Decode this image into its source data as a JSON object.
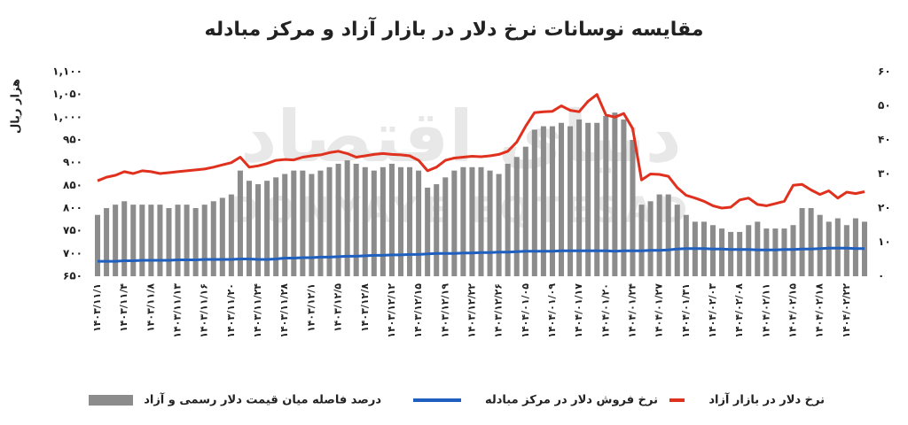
{
  "chart_data": {
    "type": "combo",
    "title": "مقایسه نوسانات نرخ دلار در بازار آزاد و مرکز مبادله",
    "y_label": "هزار ریال",
    "watermark": "دنیای اقتصاد",
    "watermark_latin": "DONYAYE EQTESAD",
    "categories": [
      "۱۴۰۳/۱۱/۱",
      null,
      null,
      "۱۴۰۳/۱۱/۴",
      null,
      null,
      "۱۴۰۳/۱۱/۸",
      null,
      null,
      "۱۴۰۳/۱۱/۱۳",
      null,
      null,
      "۱۴۰۳/۱۱/۱۶",
      null,
      null,
      "۱۴۰۳/۱۱/۲۰",
      null,
      null,
      "۱۴۰۳/۱۱/۲۴",
      null,
      null,
      "۱۴۰۳/۱۱/۲۸",
      null,
      null,
      "۱۴۰۳/۱۲/۱",
      null,
      null,
      "۱۴۰۳/۱۲/۵",
      null,
      null,
      "۱۴۰۳/۱۲/۸",
      null,
      null,
      "۱۴۰۳/۱۲/۱۲",
      null,
      null,
      "۱۴۰۳/۱۲/۱۵",
      null,
      null,
      "۱۴۰۳/۱۲/۱۹",
      null,
      null,
      "۱۴۰۳/۱۲/۲۲",
      null,
      null,
      "۱۴۰۳/۱۲/۲۶",
      null,
      null,
      "۱۴۰۴/۰۱/۰۵",
      null,
      null,
      "۱۴۰۴/۰۱/۰۹",
      null,
      null,
      "۱۴۰۴/۰۱/۱۷",
      null,
      null,
      "۱۴۰۴/۰۱/۲۰",
      null,
      null,
      "۱۴۰۴/۰۱/۲۴",
      null,
      null,
      "۱۴۰۴/۰۱/۲۷",
      null,
      null,
      "۱۴۰۴/۰۱/۳۱",
      null,
      null,
      "۱۴۰۴/۰۲/۰۳",
      null,
      null,
      "۱۴۰۴/۰۲/۰۸",
      null,
      null,
      "۱۴۰۴/۰۲/۱۱",
      null,
      null,
      "۱۴۰۴/۰۲/۱۵",
      null,
      null,
      "۱۴۰۴/۰۲/۱۸",
      null,
      null,
      "۱۴۰۴/۰۲/۲۲",
      null,
      null
    ],
    "series": [
      {
        "name": "درصد فاصله میان قیمت دلار رسمی و آزاد",
        "type": "bar",
        "axis": "y2",
        "color": "#8c8c8c",
        "values": [
          18,
          20,
          21,
          22,
          21,
          21,
          21,
          21,
          20,
          21,
          21,
          20,
          21,
          22,
          23,
          24,
          31,
          28,
          27,
          28,
          29,
          30,
          31,
          31,
          30,
          31,
          32,
          33,
          34,
          33,
          32,
          31,
          32,
          33,
          32,
          32,
          31,
          26,
          27,
          29,
          31,
          32,
          32,
          32,
          31,
          30,
          33,
          35,
          38,
          43,
          44,
          44,
          45,
          44,
          46,
          45,
          45,
          47,
          48,
          46,
          40,
          21,
          22,
          24,
          24,
          21,
          18,
          16,
          16,
          15,
          14,
          13,
          13,
          15,
          16,
          14,
          14,
          14,
          15,
          20,
          20,
          18,
          16,
          17,
          15,
          17,
          16
        ]
      },
      {
        "name": "نرخ فروش دلار در مرکز مبادله",
        "type": "line",
        "axis": "y",
        "color": "#1f5fbf",
        "values": [
          683,
          683,
          683,
          684,
          684,
          685,
          685,
          685,
          685,
          686,
          686,
          686,
          687,
          687,
          687,
          687,
          688,
          688,
          687,
          687,
          688,
          690,
          690,
          691,
          691,
          692,
          692,
          693,
          694,
          694,
          695,
          696,
          696,
          697,
          697,
          698,
          698,
          699,
          700,
          700,
          700,
          701,
          701,
          702,
          702,
          703,
          703,
          704,
          705,
          705,
          705,
          705,
          706,
          706,
          706,
          706,
          706,
          706,
          705,
          706,
          706,
          706,
          707,
          707,
          708,
          710,
          711,
          711,
          711,
          710,
          710,
          709,
          709,
          709,
          708,
          708,
          708,
          709,
          709,
          710,
          710,
          711,
          712,
          712,
          712,
          711,
          711
        ]
      },
      {
        "name": "نرخ دلار در بازار آزاد",
        "type": "line",
        "axis": "y",
        "color": "#e0301e",
        "values": [
          860,
          868,
          872,
          880,
          876,
          882,
          880,
          876,
          878,
          880,
          882,
          884,
          886,
          890,
          895,
          900,
          912,
          890,
          893,
          898,
          905,
          907,
          906,
          912,
          915,
          917,
          922,
          925,
          920,
          912,
          915,
          918,
          920,
          918,
          917,
          915,
          905,
          882,
          890,
          905,
          910,
          912,
          914,
          913,
          915,
          918,
          925,
          945,
          980,
          1010,
          1012,
          1013,
          1025,
          1015,
          1012,
          1035,
          1050,
          1005,
          1000,
          1008,
          975,
          862,
          875,
          874,
          870,
          845,
          828,
          822,
          815,
          805,
          800,
          802,
          818,
          822,
          808,
          805,
          810,
          815,
          850,
          852,
          840,
          830,
          838,
          822,
          835,
          832,
          836
        ]
      }
    ],
    "ylim": [
      650,
      1100
    ],
    "yticks": [
      {
        "value": 650,
        "label": "۶۵۰"
      },
      {
        "value": 700,
        "label": "۷۰۰"
      },
      {
        "value": 750,
        "label": "۷۵۰"
      },
      {
        "value": 800,
        "label": "۸۰۰"
      },
      {
        "value": 850,
        "label": "۸۵۰"
      },
      {
        "value": 900,
        "label": "۹۰۰"
      },
      {
        "value": 950,
        "label": "۹۵۰"
      },
      {
        "value": 1000,
        "label": "۱,۰۰۰"
      },
      {
        "value": 1050,
        "label": "۱,۰۵۰"
      },
      {
        "value": 1100,
        "label": "۱,۱۰۰"
      }
    ],
    "y2lim": [
      0,
      60
    ],
    "y2ticks": [
      {
        "value": 0,
        "label": "۰"
      },
      {
        "value": 10,
        "label": "۱۰"
      },
      {
        "value": 20,
        "label": "۲۰"
      },
      {
        "value": 30,
        "label": "۳۰"
      },
      {
        "value": 40,
        "label": "۴۰"
      },
      {
        "value": 50,
        "label": "۵۰"
      },
      {
        "value": 60,
        "label": "۶۰"
      }
    ],
    "grid": false,
    "legend": "bottom"
  }
}
